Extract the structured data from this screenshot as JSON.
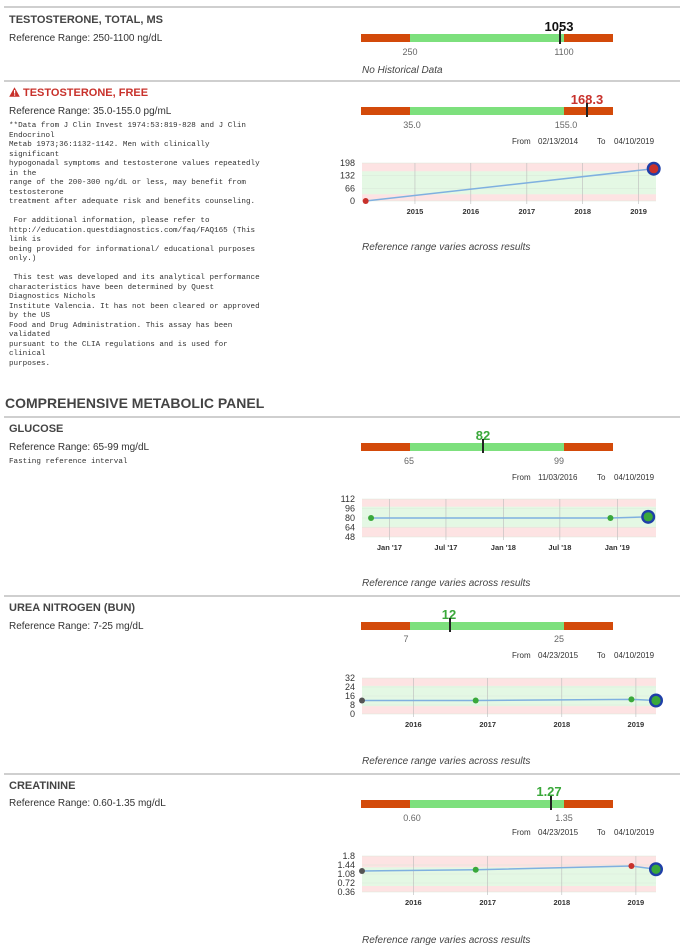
{
  "colors": {
    "low_high_band": "#d34a0a",
    "normal_band": "#7de07d",
    "trend_line": "#7fb0e0",
    "abnormal": "#c8312b",
    "normal_value": "#3aa83a"
  },
  "tests": [
    {
      "name": "TESTOSTERONE, TOTAL, MS",
      "reference_range": "Reference Range: 250-1100 ng/dL",
      "current_value": "1053",
      "range_low": "250",
      "range_high": "1100",
      "history_label": "No Historical Data"
    },
    {
      "name": "TESTOSTERONE, FREE",
      "flag_icon": "warning-icon",
      "reference_range": "Reference Range: 35.0-155.0 pg/mL",
      "note": "**Data from J Clin Invest 1974:53:819-828 and J Clin\nEndocrinol\nMetab 1973;36:1132-1142. Men with clinically\nsignificant\nhypogonadal symptoms and testosterone values repeatedly\nin the\nrange of the 200-300 ng/dL or less, may benefit from\ntestosterone\ntreatment after adequate risk and benefits counseling.\n\n For additional information, please refer to\nhttp://education.questdiagnostics.com/faq/FAQ165 (This\nlink is\nbeing provided for informational/ educational purposes\nonly.)\n\n This test was developed and its analytical performance\ncharacteristics have been determined by Quest\nDiagnostics Nichols\nInstitute Valencia. It has not been cleared or approved\nby the US\nFood and Drug Administration. This assay has been\nvalidated\npursuant to the CLIA regulations and is used for\nclinical\npurposes.",
      "current_value": "168.3",
      "range_low": "35.0",
      "range_high": "155.0",
      "from_label": "From",
      "from_date": "02/13/2014",
      "to_label": "To",
      "to_date": "04/10/2019",
      "chart_yticks": [
        "198",
        "132",
        "66",
        "0"
      ],
      "chart_xticks": [
        "2015",
        "2016",
        "2017",
        "2018",
        "2019"
      ],
      "varies_text": "Reference range varies across results"
    }
  ],
  "panel_title": "COMPREHENSIVE METABOLIC PANEL",
  "panel_tests": [
    {
      "name": "GLUCOSE",
      "reference_range": "Reference Range: 65-99 mg/dL",
      "note": "Fasting reference interval",
      "current_value": "82",
      "range_low": "65",
      "range_high": "99",
      "from_label": "From",
      "from_date": "11/03/2016",
      "to_label": "To",
      "to_date": "04/10/2019",
      "chart_yticks": [
        "112",
        "96",
        "80",
        "64",
        "48"
      ],
      "chart_xticks": [
        "Jan '17",
        "Jul '17",
        "Jan '18",
        "Jul '18",
        "Jan '19"
      ],
      "varies_text": "Reference range varies across results"
    },
    {
      "name": "UREA NITROGEN (BUN)",
      "reference_range": "Reference Range: 7-25 mg/dL",
      "current_value": "12",
      "range_low": "7",
      "range_high": "25",
      "from_label": "From",
      "from_date": "04/23/2015",
      "to_label": "To",
      "to_date": "04/10/2019",
      "chart_yticks": [
        "32",
        "24",
        "16",
        "8",
        "0"
      ],
      "chart_xticks": [
        "2016",
        "2017",
        "2018",
        "2019"
      ],
      "varies_text": "Reference range varies across results"
    },
    {
      "name": "CREATININE",
      "reference_range": "Reference Range: 0.60-1.35 mg/dL",
      "current_value": "1.27",
      "range_low": "0.60",
      "range_high": "1.35",
      "from_label": "From",
      "from_date": "04/23/2015",
      "to_label": "To",
      "to_date": "04/10/2019",
      "chart_yticks": [
        "1.8",
        "1.44",
        "1.08",
        "0.72",
        "0.36"
      ],
      "chart_xticks": [
        "2016",
        "2017",
        "2018",
        "2019"
      ],
      "varies_text": "Reference range varies across results"
    }
  ],
  "chart_data": [
    {
      "type": "line",
      "name": "TESTOSTERONE, FREE",
      "x": [
        "2014-02-13",
        "2019-04-10"
      ],
      "y": [
        0,
        168.3
      ],
      "ylim": [
        0,
        198
      ],
      "reference_range": [
        35.0,
        155.0
      ]
    },
    {
      "type": "line",
      "name": "GLUCOSE",
      "x": [
        "2016-11-03",
        "2018-12-10",
        "2019-04-10"
      ],
      "y": [
        80,
        80,
        82
      ],
      "ylim": [
        48,
        112
      ],
      "reference_range": [
        65,
        99
      ]
    },
    {
      "type": "line",
      "name": "UREA NITROGEN (BUN)",
      "x": [
        "2015-04-23",
        "2016-11-03",
        "2018-12-10",
        "2019-04-10"
      ],
      "y": [
        12,
        12,
        13,
        12
      ],
      "ylim": [
        0,
        32
      ],
      "reference_range": [
        7,
        25
      ]
    },
    {
      "type": "line",
      "name": "CREATININE",
      "x": [
        "2015-04-23",
        "2016-11-03",
        "2018-12-10",
        "2019-04-10"
      ],
      "y": [
        1.2,
        1.25,
        1.4,
        1.27
      ],
      "ylim": [
        0.36,
        1.8
      ],
      "reference_range": [
        0.6,
        1.35
      ]
    }
  ]
}
